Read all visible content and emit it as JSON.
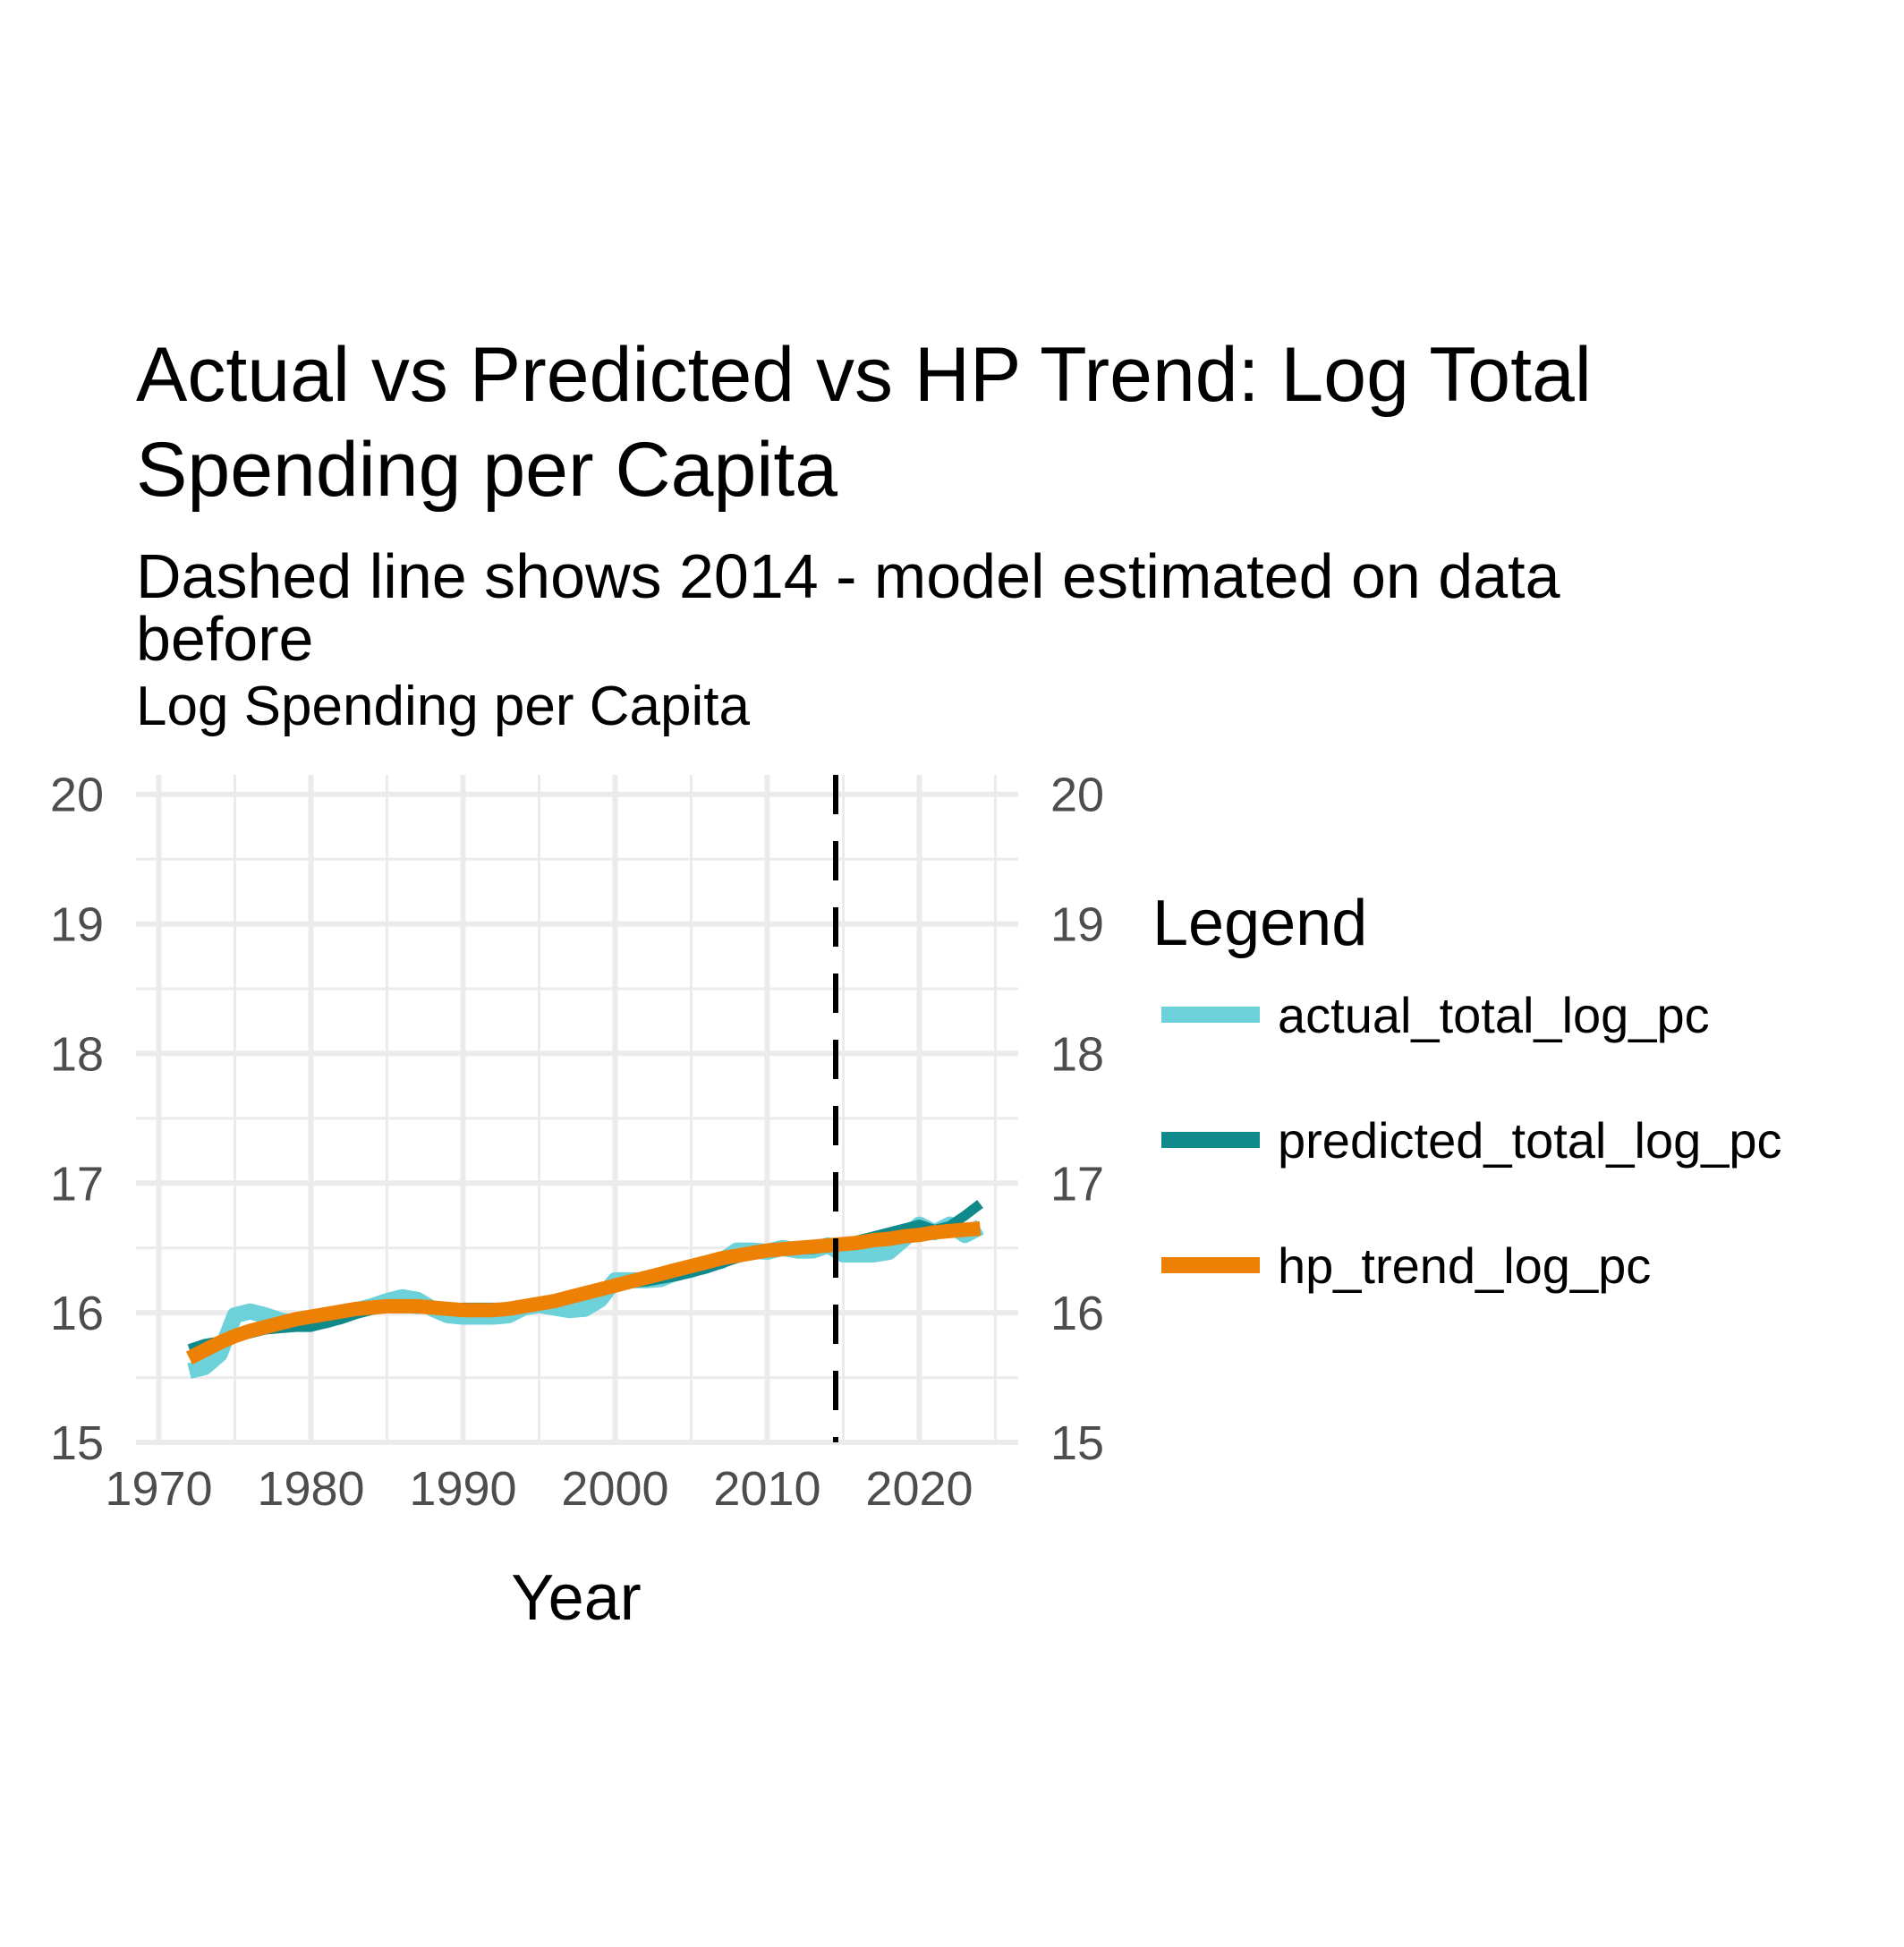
{
  "chart_data": {
    "type": "line",
    "title_lines": [
      "Actual vs Predicted vs HP Trend: Log Total",
      "Spending per Capita"
    ],
    "subtitle_lines": [
      "Dashed line shows 2014 - model estimated on data",
      "before"
    ],
    "ylabel": "Log Spending per Capita",
    "xlabel": "Year",
    "xlim": [
      1968.5,
      2026.5
    ],
    "ylim": [
      15,
      20
    ],
    "x_ticks": [
      1970,
      1980,
      1990,
      2000,
      2010,
      2020
    ],
    "y_ticks": [
      15,
      16,
      17,
      18,
      19,
      20
    ],
    "secondary_y_axis": true,
    "vline": {
      "x": 2014.5,
      "style": "dashed",
      "color": "#000000"
    },
    "grid": true,
    "legend": {
      "title": "Legend",
      "position": "right"
    },
    "x": [
      1972,
      1973,
      1974,
      1975,
      1976,
      1977,
      1978,
      1979,
      1980,
      1981,
      1982,
      1983,
      1984,
      1985,
      1986,
      1987,
      1988,
      1989,
      1990,
      1991,
      1992,
      1993,
      1994,
      1995,
      1996,
      1997,
      1998,
      1999,
      2000,
      2001,
      2002,
      2003,
      2004,
      2005,
      2006,
      2007,
      2008,
      2009,
      2010,
      2011,
      2012,
      2013,
      2014,
      2015,
      2016,
      2017,
      2018,
      2019,
      2020,
      2021,
      2022,
      2023,
      2024
    ],
    "series": [
      {
        "name": "actual_total_log_pc",
        "color": "#6dd1d9",
        "values": [
          15.55,
          15.58,
          15.68,
          15.98,
          16.01,
          15.98,
          15.94,
          15.92,
          15.92,
          15.94,
          15.98,
          16.02,
          16.05,
          16.09,
          16.12,
          16.1,
          16.03,
          15.98,
          15.97,
          15.97,
          15.97,
          15.98,
          16.04,
          16.06,
          16.04,
          16.02,
          16.03,
          16.1,
          16.25,
          16.25,
          16.25,
          16.26,
          16.31,
          16.33,
          16.38,
          16.4,
          16.48,
          16.48,
          16.47,
          16.5,
          16.48,
          16.48,
          16.52,
          16.45,
          16.45,
          16.45,
          16.47,
          16.57,
          16.68,
          16.62,
          16.68,
          16.6,
          16.66
        ]
      },
      {
        "name": "predicted_total_log_pc",
        "color": "#10898b",
        "values": [
          15.72,
          15.76,
          15.78,
          15.82,
          15.84,
          15.87,
          15.88,
          15.89,
          15.89,
          15.92,
          15.95,
          15.99,
          16.02,
          16.04,
          16.04,
          16.03,
          16.03,
          16.03,
          16.04,
          16.04,
          16.04,
          16.04,
          16.05,
          16.06,
          16.08,
          16.12,
          16.15,
          16.18,
          16.2,
          16.23,
          16.24,
          16.26,
          16.28,
          16.31,
          16.34,
          16.38,
          16.42,
          16.45,
          16.47,
          16.48,
          16.49,
          16.49,
          16.51,
          16.53,
          16.56,
          16.59,
          16.62,
          16.65,
          16.68,
          16.64,
          16.67,
          16.75,
          16.84
        ]
      },
      {
        "name": "hp_trend_log_pc",
        "color": "#ec8105",
        "values": [
          15.65,
          15.71,
          15.77,
          15.82,
          15.86,
          15.89,
          15.92,
          15.95,
          15.97,
          15.99,
          16.01,
          16.03,
          16.04,
          16.05,
          16.05,
          16.05,
          16.04,
          16.03,
          16.02,
          16.02,
          16.02,
          16.03,
          16.05,
          16.07,
          16.09,
          16.12,
          16.15,
          16.18,
          16.21,
          16.24,
          16.27,
          16.3,
          16.33,
          16.36,
          16.39,
          16.42,
          16.44,
          16.46,
          16.48,
          16.49,
          16.5,
          16.51,
          16.52,
          16.53,
          16.54,
          16.56,
          16.57,
          16.59,
          16.6,
          16.62,
          16.63,
          16.64,
          16.65
        ]
      }
    ]
  }
}
